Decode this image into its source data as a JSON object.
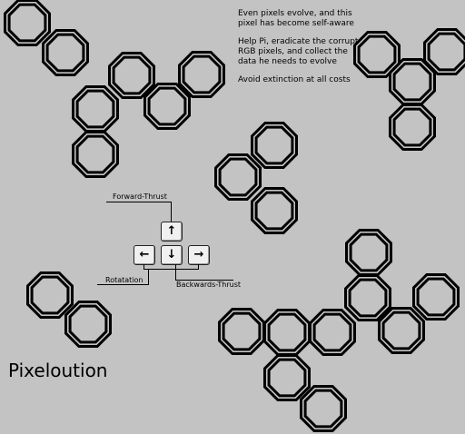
{
  "story": {
    "line1": "Even pixels evolve, and this pixel has become self-aware",
    "line2": "Help Pi, eradicate the corrupt RGB pixels, and collect  the data he needs to evolve",
    "line3": "Avoid extinction at all costs"
  },
  "controls": {
    "forward_label": "Forward-Thrust",
    "rotation_label": "Rotatation",
    "backwards_label": "Backwards-Thrust",
    "up_key": "↑",
    "down_key": "↓",
    "left_key": "←",
    "right_key": "→"
  },
  "game_title": "Pixeloution"
}
